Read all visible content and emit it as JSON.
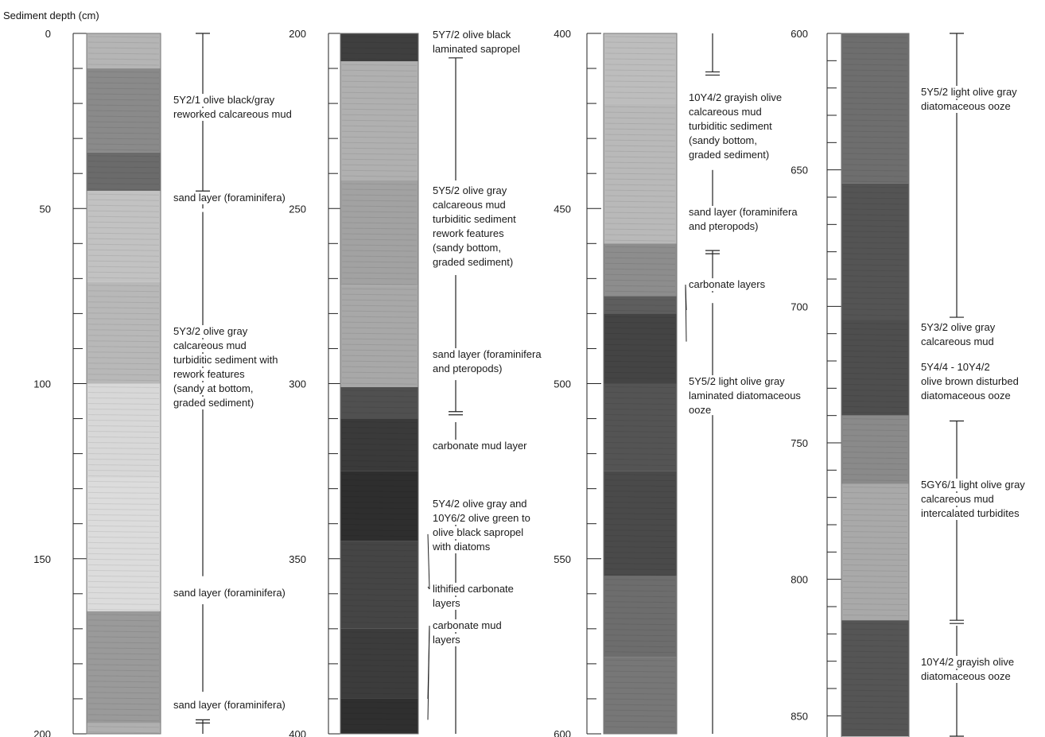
{
  "figure": {
    "y_axis_label": "Sediment depth (cm)"
  },
  "columns": [
    {
      "id": "c1",
      "depth_range": [
        0,
        200
      ],
      "tick_labels": [
        "0",
        "50",
        "100",
        "150",
        "200"
      ],
      "layer_bounds": [
        0,
        10,
        34,
        45,
        71,
        100,
        127,
        165,
        197
      ],
      "layer_tones": [
        "#c8c8c8",
        "#b5b5b5",
        "#8a8a8a",
        "#6b6b6b",
        "#c2c2c2",
        "#b8b8b8",
        "#d8d8d8",
        "#dcdcdc",
        "#9a9a9a",
        "#b0b0b0",
        "#6d6d6d"
      ],
      "units": [
        {
          "lines": [
            "5Y2/1 olive black/gray",
            "reworked calcareous mud"
          ],
          "text_y": 130,
          "bar_start": 0,
          "bar_end": 45,
          "top_cap": "single",
          "bottom_cap": "single"
        },
        {
          "lines": [
            "sand layer (foraminifera)"
          ],
          "text_y": 253,
          "bar_start": 47,
          "bar_end": 50,
          "top_cap": "none",
          "bottom_cap": "none"
        },
        {
          "lines": [
            "5Y3/2 olive gray",
            "calcareous mud",
            "turbiditic sediment with",
            "rework features",
            "(sandy at bottom,",
            "graded sediment)"
          ],
          "text_y": 421,
          "bar_start": 51,
          "bar_end": 155,
          "top_cap": "none",
          "bottom_cap": "none"
        },
        {
          "lines": [
            "sand layer (foraminifera)"
          ],
          "text_y": 750,
          "bar_start": 163,
          "bar_end": 188,
          "top_cap": "none",
          "bottom_cap": "none"
        },
        {
          "lines": [
            "sand layer (foraminifera)"
          ],
          "text_y": 891,
          "bar_start": 196,
          "bar_end": 200,
          "top_cap": "double",
          "bottom_cap": "none"
        }
      ],
      "leaders": []
    },
    {
      "id": "c2",
      "depth_range": [
        200,
        400
      ],
      "tick_labels": [
        "200",
        "250",
        "300",
        "350",
        "400"
      ],
      "layer_bounds": [
        208,
        242,
        272,
        301,
        310,
        325,
        345,
        370,
        390
      ],
      "layer_tones": [
        "#3f3f3f",
        "#b0b0b0",
        "#a2a2a2",
        "#a8a8a8",
        "#505050",
        "#3a3a3a",
        "#2e2e2e",
        "#454545",
        "#3c3c3c",
        "#2f2f2f"
      ],
      "units": [
        {
          "lines": [
            "5Y7/2 olive black",
            "laminated sapropel"
          ],
          "text_y": 48,
          "bar_start": 207,
          "bar_end": 242,
          "top_cap": "single",
          "bottom_cap": "none"
        },
        {
          "lines": [
            "5Y5/2 olive gray",
            "calcareous mud",
            "turbiditic sediment",
            "rework features",
            "(sandy bottom,",
            "graded sediment)"
          ],
          "text_y": 244,
          "bar_start": 269,
          "bar_end": 290,
          "top_cap": "none",
          "bottom_cap": "none"
        },
        {
          "lines": [
            "sand layer (foraminifera",
            "and pteropods)"
          ],
          "text_y": 450,
          "bar_start": 299,
          "bar_end": 308,
          "top_cap": "none",
          "bottom_cap": "double"
        },
        {
          "lines": [
            "carbonate mud layer"
          ],
          "text_y": 565,
          "bar_start": 311,
          "bar_end": 318,
          "top_cap": "none",
          "bottom_cap": "none"
        },
        {
          "lines": [
            "5Y4/2 olive gray and",
            "10Y6/2 olive green to",
            "olive black sapropel",
            "with diatoms"
          ],
          "text_y": 638,
          "bar_start": 338,
          "bar_end": 400,
          "top_cap": "none",
          "bottom_cap": "none"
        },
        {
          "lines": [
            "lithified carbonate",
            "layers"
          ],
          "text_y": 745,
          "bar_start": null,
          "bar_end": null,
          "top_cap": "none",
          "bottom_cap": "none"
        },
        {
          "lines": [
            "carbonate mud",
            "layers"
          ],
          "text_y": 791,
          "bar_start": null,
          "bar_end": null,
          "top_cap": "none",
          "bottom_cap": "none"
        }
      ],
      "leaders": [
        {
          "from_unit": 5,
          "to_depth": 343
        },
        {
          "from_unit": 5,
          "to_depth": 358
        },
        {
          "from_unit": 6,
          "to_depth": 390
        },
        {
          "from_unit": 6,
          "to_depth": 396
        }
      ]
    },
    {
      "id": "c3",
      "depth_range": [
        400,
        600
      ],
      "tick_labels": [
        "400",
        "450",
        "500",
        "550",
        "600"
      ],
      "layer_bounds": [
        420,
        460,
        475,
        480,
        500,
        525,
        555,
        578
      ],
      "layer_tones": [
        "#bdbdbd",
        "#b9b9b9",
        "#8d8d8d",
        "#5e5e5e",
        "#444444",
        "#545454",
        "#4a4a4a",
        "#6d6d6d",
        "#777777"
      ],
      "units": [
        {
          "lines": [
            "10Y4/2 grayish olive",
            "calcareous mud",
            "turbiditic sediment",
            "(sandy bottom,",
            "graded sediment)"
          ],
          "text_y": 127,
          "bar_start": 400,
          "bar_end": 411,
          "top_cap": "none",
          "bottom_cap": "double"
        },
        {
          "lines": [
            "sand layer (foraminifera",
            "and pteropods)"
          ],
          "text_y": 271,
          "bar_start": 439,
          "bar_end": 450,
          "top_cap": "none",
          "bottom_cap": "none"
        },
        {
          "lines": [
            "carbonate layers"
          ],
          "text_y": 362,
          "bar_start": 462,
          "bar_end": 474,
          "top_cap": "double",
          "bottom_cap": "none"
        },
        {
          "lines": [
            "5Y5/2 light olive gray",
            "laminated diatomaceous",
            "ooze"
          ],
          "text_y": 484,
          "bar_start": 477,
          "bar_end": 500,
          "top_cap": "none",
          "bottom_cap": "none"
        },
        {
          "lines": [],
          "text_y": 0,
          "bar_start": 509,
          "bar_end": 600,
          "top_cap": "none",
          "bottom_cap": "none"
        }
      ],
      "leaders": [
        {
          "from_unit": 2,
          "to_depth": 479
        },
        {
          "from_unit": 2,
          "to_depth": 488
        }
      ]
    },
    {
      "id": "c4",
      "depth_range": [
        600,
        860
      ],
      "tick_labels": [
        "600",
        "650",
        "700",
        "750",
        "800",
        "850"
      ],
      "layer_bounds": [
        655,
        705,
        740,
        765,
        815
      ],
      "layer_tones": [
        "#6e6e6e",
        "#545454",
        "#4e4e4e",
        "#8a8a8a",
        "#a9a9a9",
        "#555555"
      ],
      "units": [
        {
          "lines": [
            "5Y5/2 light olive gray",
            "diatomaceous ooze"
          ],
          "text_y": 120,
          "bar_start": 600,
          "bar_end": 704,
          "top_cap": "single",
          "bottom_cap": "single"
        },
        {
          "lines": [
            "5Y3/2 olive gray",
            "calcareous mud"
          ],
          "text_y": 416,
          "bar_start": null,
          "bar_end": null,
          "top_cap": "none",
          "bottom_cap": "none"
        },
        {
          "lines": [
            "5Y4/4 - 10Y4/2",
            "olive brown disturbed",
            "diatomaceous ooze"
          ],
          "text_y": 466,
          "bar_start": null,
          "bar_end": null,
          "top_cap": "none",
          "bottom_cap": "none"
        },
        {
          "lines": [
            "5GY6/1 light olive gray",
            "calcareous mud",
            "intercalated turbidites"
          ],
          "text_y": 614,
          "bar_start": 742,
          "bar_end": 815,
          "top_cap": "single",
          "bottom_cap": "double"
        },
        {
          "lines": [
            "10Y4/2 grayish olive",
            "diatomaceous ooze"
          ],
          "text_y": 837,
          "bar_start": 817,
          "bar_end": 860,
          "top_cap": "none",
          "bottom_cap": "single"
        }
      ],
      "leaders": []
    }
  ]
}
